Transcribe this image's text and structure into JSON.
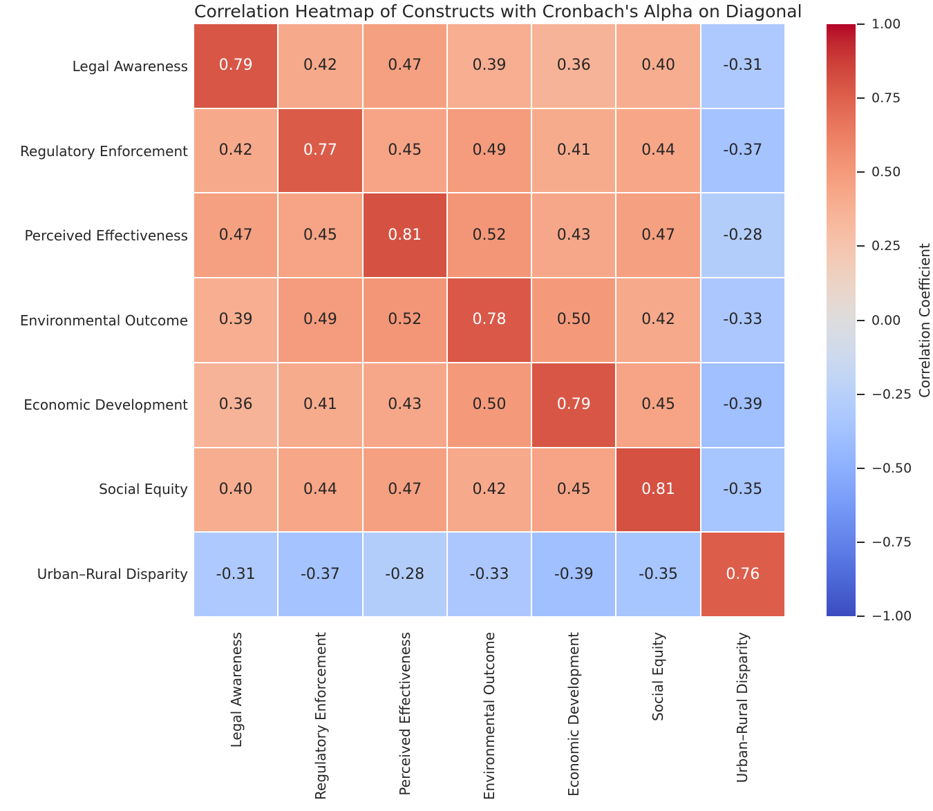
{
  "title": "Correlation Heatmap of Constructs with Cronbach's Alpha on Diagonal",
  "colors": {
    "background": "#ffffff",
    "grid_lines": "#ffffff",
    "label_text": "#262626",
    "annotation_dark": "#262626",
    "annotation_light": "#ffffff",
    "cmap_low": "#3b4cc0",
    "cmap_mid": "#dddddd",
    "cmap_high": "#b40426"
  },
  "chart_data": {
    "type": "heatmap",
    "title": "Correlation Heatmap of Constructs with Cronbach's Alpha on Diagonal",
    "x_labels": [
      "Legal Awareness",
      "Regulatory Enforcement",
      "Perceived Effectiveness",
      "Environmental Outcome",
      "Economic Development",
      "Social Equity",
      "Urban–Rural Disparity"
    ],
    "y_labels": [
      "Legal Awareness",
      "Regulatory Enforcement",
      "Perceived Effectiveness",
      "Environmental Outcome",
      "Economic Development",
      "Social Equity",
      "Urban–Rural Disparity"
    ],
    "matrix": [
      [
        0.79,
        0.42,
        0.47,
        0.39,
        0.36,
        0.4,
        -0.31
      ],
      [
        0.42,
        0.77,
        0.45,
        0.49,
        0.41,
        0.44,
        -0.37
      ],
      [
        0.47,
        0.45,
        0.81,
        0.52,
        0.43,
        0.47,
        -0.28
      ],
      [
        0.39,
        0.49,
        0.52,
        0.78,
        0.5,
        0.42,
        -0.33
      ],
      [
        0.36,
        0.41,
        0.43,
        0.5,
        0.79,
        0.45,
        -0.39
      ],
      [
        0.4,
        0.44,
        0.47,
        0.42,
        0.45,
        0.81,
        -0.35
      ],
      [
        -0.31,
        -0.37,
        -0.28,
        -0.33,
        -0.39,
        -0.35,
        0.76
      ]
    ],
    "diagonal_values": [
      0.79,
      0.77,
      0.81,
      0.78,
      0.79,
      0.81,
      0.76
    ],
    "annotation_decimals": 2,
    "colormap": "coolwarm",
    "vmin": -1.0,
    "vmax": 1.0,
    "grid": true,
    "colorbar": {
      "label": "Correlation Coefficient",
      "tick_values": [
        1.0,
        0.75,
        0.5,
        0.25,
        0.0,
        -0.25,
        -0.5,
        -0.75,
        -1.0
      ],
      "tick_labels": [
        "1.00",
        "0.75",
        "0.50",
        "0.25",
        "0.00",
        "−0.25",
        "−0.50",
        "−0.75",
        "−1.00"
      ],
      "position": "right"
    }
  }
}
